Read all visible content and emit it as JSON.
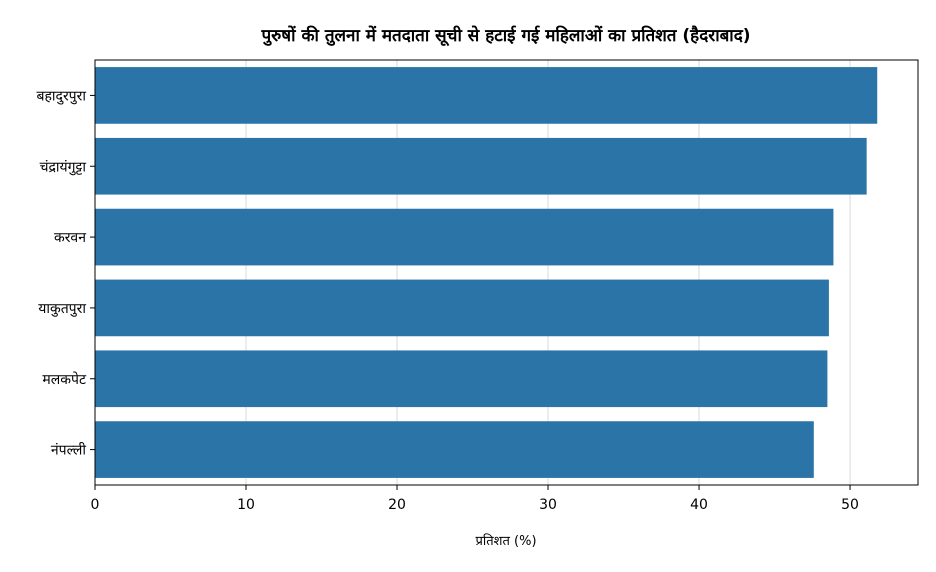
{
  "chart_data": {
    "type": "bar",
    "orientation": "horizontal",
    "title": "पुरुषों की तुलना में मतदाता सूची से हटाई गई महिलाओं का प्रतिशत (हैदराबाद)",
    "xlabel": "प्रतिशत (%)",
    "ylabel": "",
    "categories": [
      "बहादुरपुरा",
      "चंद्रायंगुट्टा",
      "करवन",
      "याकुतपुरा",
      "मलकपेट",
      "नंपल्ली"
    ],
    "values": [
      51.8,
      51.1,
      48.9,
      48.6,
      48.5,
      47.6
    ],
    "xlim": [
      0,
      54.5
    ],
    "xticks": [
      0,
      10,
      20,
      30,
      40,
      50
    ],
    "grid": "x",
    "bar_color": "#2b74a8"
  }
}
